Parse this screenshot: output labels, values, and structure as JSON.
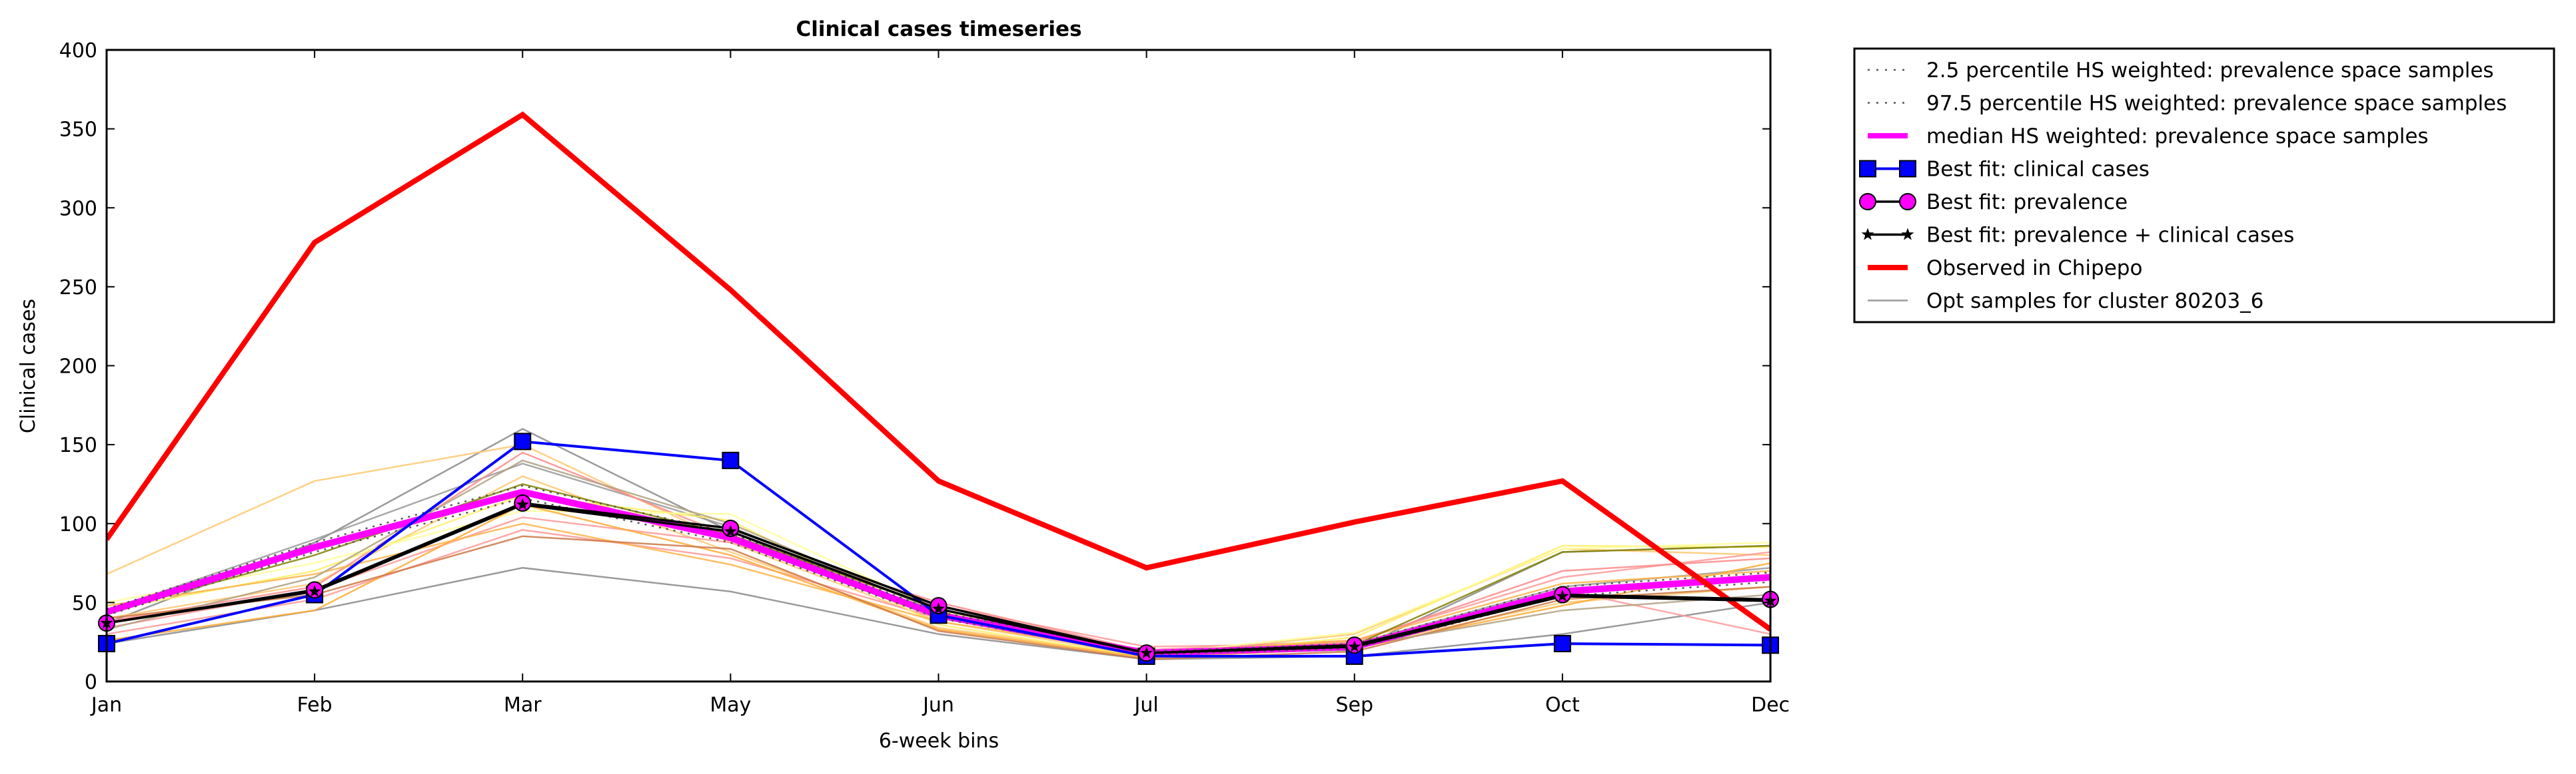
{
  "chart_data": {
    "type": "line",
    "title": "Clinical cases timeseries",
    "xlabel": "6-week bins",
    "ylabel": "Clinical cases",
    "categories": [
      "Jan",
      "Feb",
      "Mar",
      "May",
      "Jun",
      "Jul",
      "Sep",
      "Oct",
      "Dec"
    ],
    "ylim": [
      0,
      400
    ],
    "yticks": [
      "0",
      "50",
      "100",
      "150",
      "200",
      "250",
      "300",
      "350",
      "400"
    ],
    "grid": false,
    "legend_position": "outside-right-top",
    "legend": [
      {
        "label": "2.5 percentile HS weighted: prevalence space samples",
        "style": "dotted",
        "color": "#555555"
      },
      {
        "label": "97.5 percentile HS weighted: prevalence space samples",
        "style": "dotted",
        "color": "#555555"
      },
      {
        "label": "median HS weighted: prevalence space samples",
        "style": "solid-thick",
        "color": "#ff00ff"
      },
      {
        "label": "Best fit: clinical cases",
        "style": "square-marker",
        "color": "#0000ff"
      },
      {
        "label": "Best fit: prevalence",
        "style": "circle-marker",
        "color": "#ff00ff"
      },
      {
        "label": "Best fit: prevalence + clinical cases",
        "style": "star-marker",
        "color": "#000000"
      },
      {
        "label": "Observed in Chipepo",
        "style": "solid-thick",
        "color": "#ff0000"
      },
      {
        "label": "Opt samples for cluster 80203_6",
        "style": "solid-thin",
        "color": "#999999"
      }
    ],
    "series": [
      {
        "name": "Observed in Chipepo",
        "color": "#ff0000",
        "values": [
          90,
          278,
          359,
          248,
          127,
          72,
          101,
          127,
          33
        ]
      },
      {
        "name": "Best fit: clinical cases",
        "color": "#0000ff",
        "values": [
          24,
          55,
          152,
          140,
          42,
          16,
          16,
          24,
          23
        ]
      },
      {
        "name": "Best fit: prevalence",
        "color": "#000000",
        "marker_fill": "#ff00ff",
        "values": [
          37,
          58,
          113,
          97,
          48,
          18,
          23,
          55,
          52
        ]
      },
      {
        "name": "Best fit: prevalence + clinical cases",
        "color": "#000000",
        "values": [
          37,
          57,
          112,
          95,
          46,
          18,
          22,
          54,
          51
        ]
      },
      {
        "name": "median HS weighted: prevalence space samples",
        "color": "#ff00ff",
        "values": [
          44,
          85,
          120,
          91,
          42,
          18,
          22,
          57,
          66
        ]
      },
      {
        "name": "2.5 percentile HS weighted: prevalence space samples",
        "color": "#555555",
        "values": [
          42,
          82,
          116,
          88,
          40,
          17,
          21,
          54,
          63
        ]
      },
      {
        "name": "97.5 percentile HS weighted: prevalence space samples",
        "color": "#555555",
        "values": [
          46,
          88,
          124,
          94,
          44,
          19,
          24,
          60,
          69
        ]
      }
    ],
    "sample_lines": [
      {
        "color": "#888888",
        "values": [
          37,
          88,
          160,
          95,
          42,
          17,
          20,
          82,
          86
        ]
      },
      {
        "color": "#888888",
        "values": [
          24,
          45,
          72,
          57,
          30,
          14,
          16,
          30,
          50
        ]
      },
      {
        "color": "#999999",
        "values": [
          45,
          90,
          138,
          98,
          45,
          18,
          24,
          60,
          72
        ]
      },
      {
        "color": "#ffc870",
        "values": [
          68,
          127,
          150,
          88,
          38,
          16,
          22,
          50,
          60
        ]
      },
      {
        "color": "#ffc870",
        "values": [
          40,
          62,
          130,
          82,
          34,
          16,
          30,
          84,
          80
        ]
      },
      {
        "color": "#ff9999",
        "values": [
          30,
          52,
          96,
          78,
          40,
          20,
          26,
          66,
          82
        ]
      },
      {
        "color": "#ff9999",
        "values": [
          34,
          58,
          104,
          88,
          48,
          22,
          24,
          58,
          30
        ]
      },
      {
        "color": "#ff8888",
        "values": [
          38,
          60,
          145,
          92,
          50,
          19,
          25,
          70,
          78
        ]
      },
      {
        "color": "#ffee66",
        "values": [
          45,
          70,
          118,
          102,
          36,
          15,
          28,
          86,
          85
        ]
      },
      {
        "color": "#ffff99",
        "values": [
          50,
          75,
          108,
          106,
          45,
          17,
          31,
          84,
          88
        ]
      },
      {
        "color": "#ffaa33",
        "values": [
          26,
          45,
          112,
          80,
          33,
          15,
          21,
          48,
          75
        ]
      },
      {
        "color": "#ffb347",
        "values": [
          48,
          68,
          100,
          74,
          38,
          18,
          26,
          62,
          70
        ]
      },
      {
        "color": "#808000",
        "values": [
          44,
          80,
          125,
          93,
          46,
          18,
          23,
          82,
          86
        ]
      },
      {
        "color": "#cc7744",
        "values": [
          40,
          55,
          92,
          84,
          32,
          14,
          19,
          52,
          60
        ]
      },
      {
        "color": "#b0a080",
        "values": [
          33,
          66,
          140,
          100,
          44,
          16,
          22,
          45,
          55
        ]
      }
    ]
  }
}
